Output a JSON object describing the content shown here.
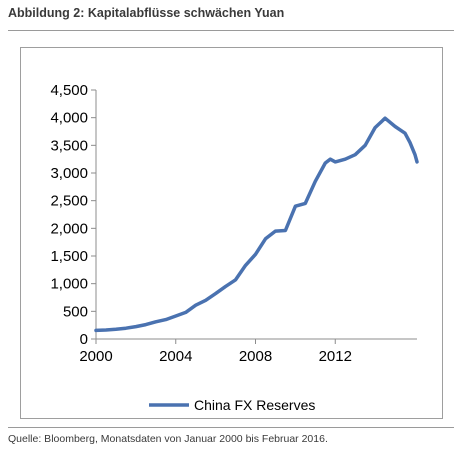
{
  "figure": {
    "title": "Abbildung 2: Kapitalabflüsse schwächen Yuan",
    "source": "Quelle: Bloomberg, Monatsdaten von Januar 2000 bis Februar 2016."
  },
  "chart_data": {
    "type": "line",
    "title": "",
    "xlabel": "",
    "ylabel": "",
    "xlim": [
      2000,
      2016.1
    ],
    "ylim": [
      0,
      4500
    ],
    "x_ticks": [
      2000,
      2004,
      2008,
      2012
    ],
    "y_ticks": [
      0,
      500,
      1000,
      1500,
      2000,
      2500,
      3000,
      3500,
      4000,
      4500
    ],
    "y_tick_labels": [
      "0",
      "500",
      "1,000",
      "1,500",
      "2,000",
      "2,500",
      "3,000",
      "3,500",
      "4,000",
      "4,500"
    ],
    "grid": false,
    "legend_position": "bottom",
    "series": [
      {
        "name": "China FX Reserves",
        "color": "#4a72b0",
        "x": [
          2000.0,
          2000.5,
          2001.0,
          2001.5,
          2002.0,
          2002.5,
          2003.0,
          2003.5,
          2004.0,
          2004.5,
          2005.0,
          2005.5,
          2006.0,
          2006.5,
          2007.0,
          2007.5,
          2008.0,
          2008.5,
          2009.0,
          2009.5,
          2010.0,
          2010.5,
          2011.0,
          2011.5,
          2011.75,
          2012.0,
          2012.5,
          2013.0,
          2013.5,
          2014.0,
          2014.5,
          2015.0,
          2015.5,
          2015.75,
          2016.0,
          2016.1
        ],
        "values": [
          155,
          162,
          175,
          195,
          225,
          260,
          310,
          350,
          415,
          480,
          610,
          700,
          820,
          950,
          1070,
          1330,
          1530,
          1810,
          1950,
          1960,
          2400,
          2450,
          2850,
          3180,
          3250,
          3200,
          3250,
          3330,
          3500,
          3820,
          3990,
          3840,
          3720,
          3550,
          3330,
          3200
        ]
      }
    ]
  }
}
